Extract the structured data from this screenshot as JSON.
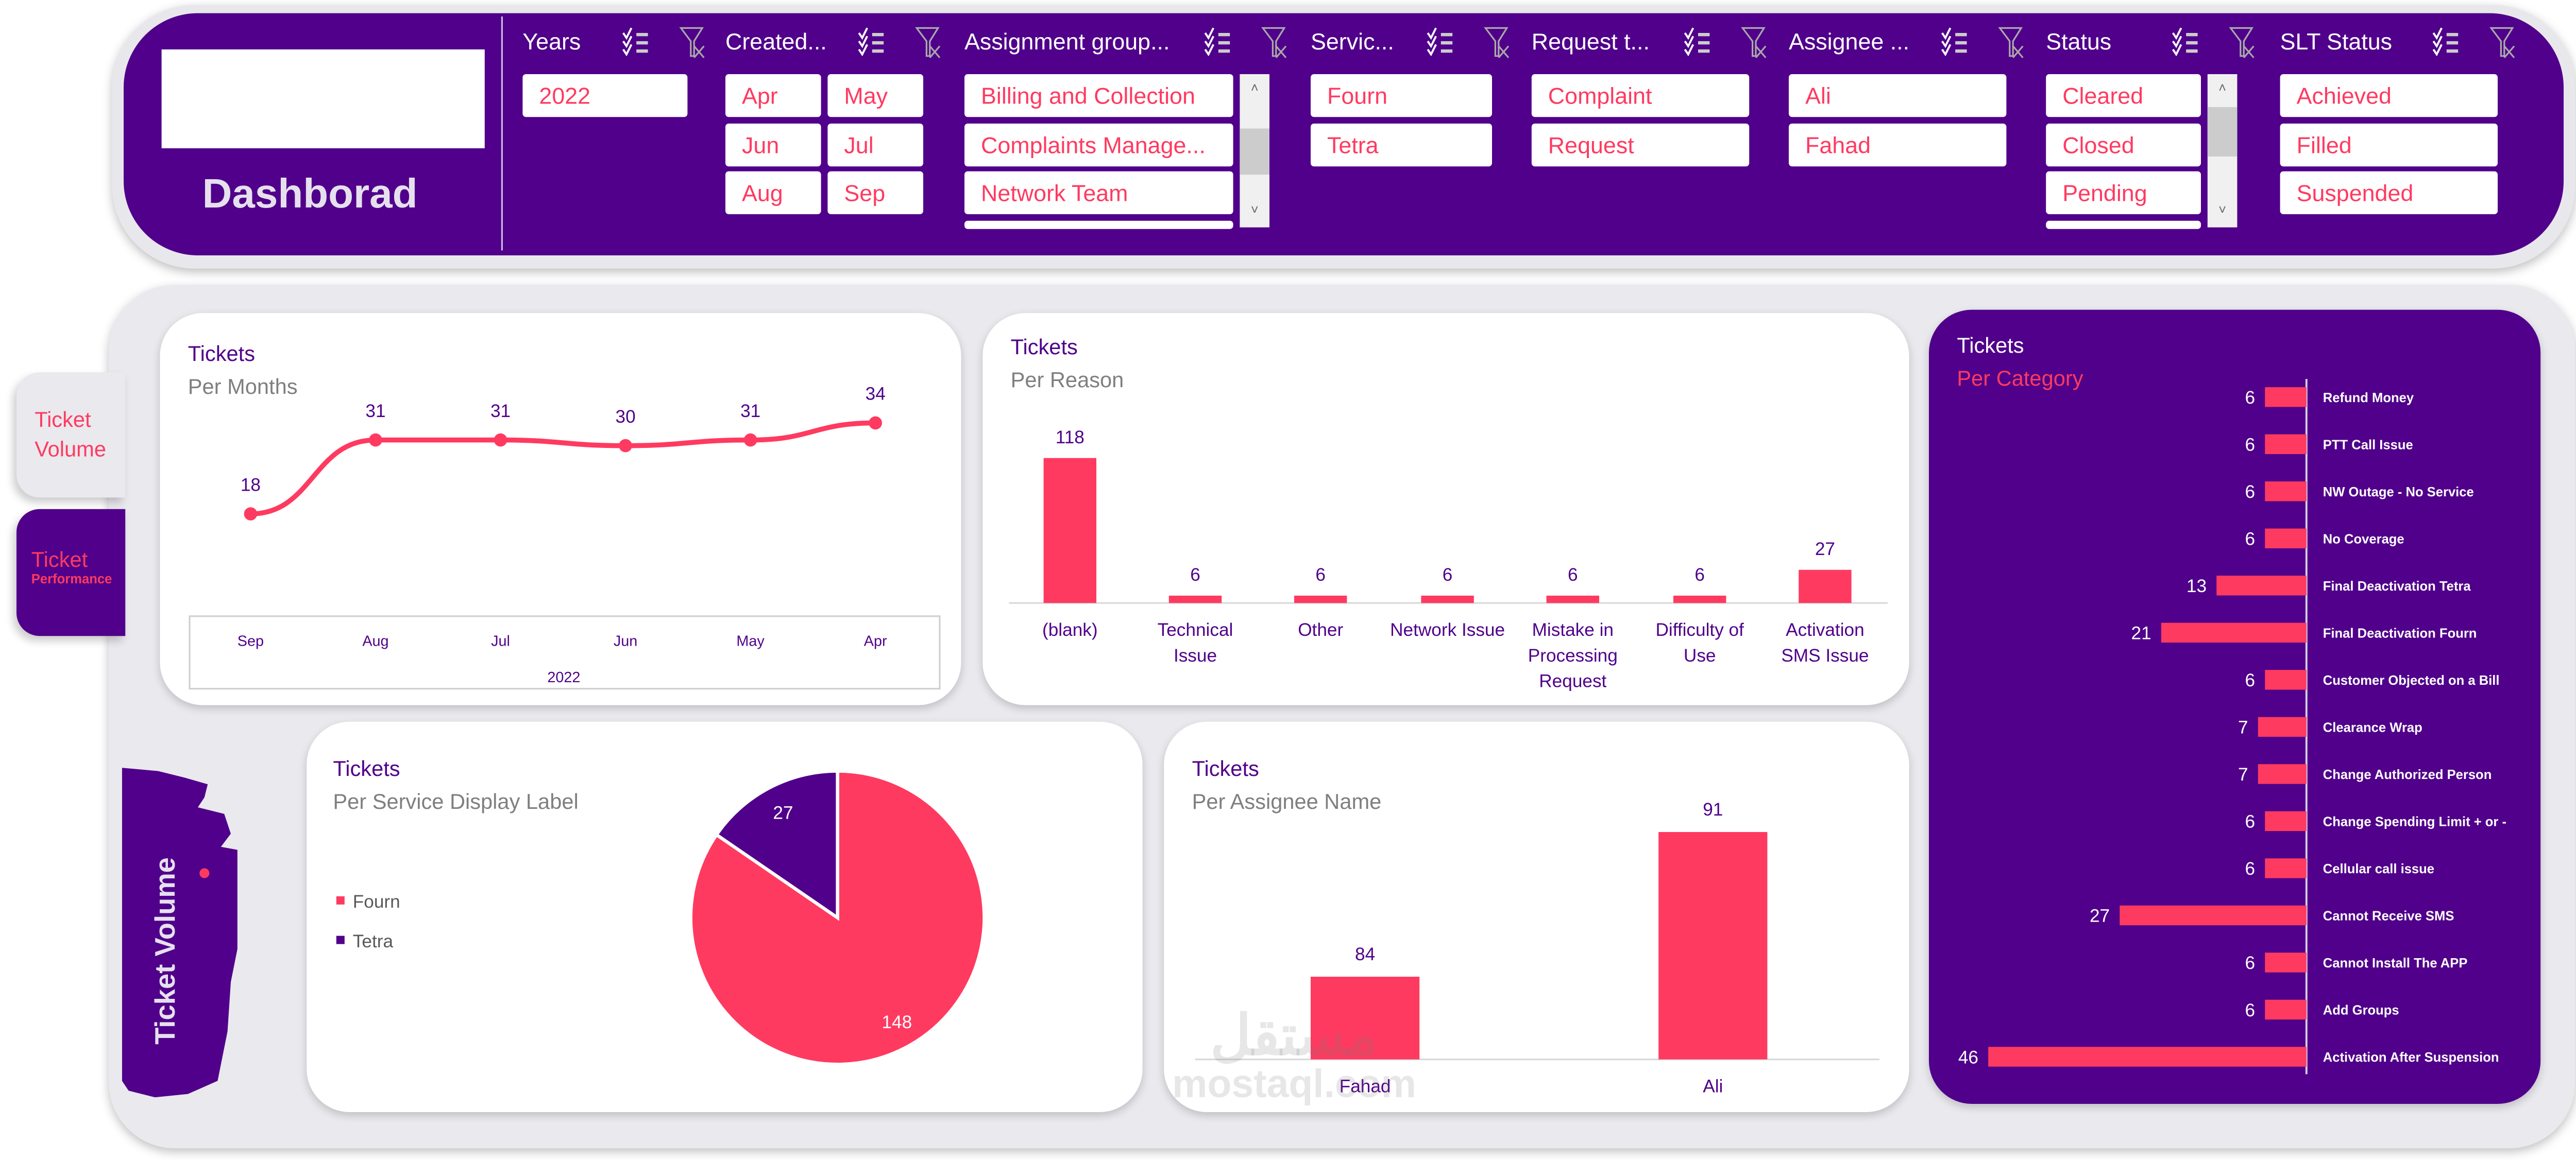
{
  "colors": {
    "purple": "#50008a",
    "accent": "#ff3a60",
    "panel": "#e9e9ee",
    "white": "#ffffff"
  },
  "header": {
    "title": "Dashborad"
  },
  "slicers": [
    {
      "title": "Years",
      "items": [
        "2022"
      ],
      "columns": 1,
      "scrollbar": false
    },
    {
      "title": "Created...",
      "items": [
        "Apr",
        "May",
        "Jun",
        "Jul",
        "Aug",
        "Sep"
      ],
      "columns": 2,
      "scrollbar": false
    },
    {
      "title": "Assignment group...",
      "items": [
        "Billing and Collection",
        "Complaints Manage...",
        "Network Team",
        ""
      ],
      "columns": 1,
      "scrollbar": true
    },
    {
      "title": "Servic...",
      "items": [
        "Fourn",
        "Tetra"
      ],
      "columns": 1,
      "scrollbar": false
    },
    {
      "title": "Request t...",
      "items": [
        "Complaint",
        "Request"
      ],
      "columns": 1,
      "scrollbar": false
    },
    {
      "title": "Assignee ...",
      "items": [
        "Ali",
        "Fahad"
      ],
      "columns": 1,
      "scrollbar": false
    },
    {
      "title": "Status",
      "items": [
        "Cleared",
        "Closed",
        "Pending",
        ""
      ],
      "columns": 1,
      "scrollbar": true
    },
    {
      "title": "SLT Status",
      "items": [
        "Achieved",
        "Filled",
        "Suspended"
      ],
      "columns": 1,
      "scrollbar": false
    }
  ],
  "slicer_icons": {
    "multi_select": "multi-select-checklist-icon",
    "clear_filter": "clear-filter-icon"
  },
  "tabs": [
    {
      "line1": "Ticket",
      "line2": "Volume",
      "active": false
    },
    {
      "line1": "Ticket",
      "line2": "Performance",
      "active": true
    }
  ],
  "section_label": "Ticket Volume",
  "watermark": {
    "arabic": "مستقل",
    "latin": "mostaql.com"
  },
  "chart_data": [
    {
      "type": "line",
      "title": "Tickets",
      "subtitle": "Per Months",
      "categories": [
        "Sep",
        "Aug",
        "Jul",
        "Jun",
        "May",
        "Apr"
      ],
      "group_label": "2022",
      "values": [
        18,
        31,
        31,
        30,
        31,
        34
      ],
      "ylim": [
        0,
        40
      ],
      "grid": false,
      "legend": "none"
    },
    {
      "type": "bar",
      "title": "Tickets",
      "subtitle": "Per Reason",
      "categories": [
        "(blank)",
        "Technical Issue",
        "Other",
        "Network Issue",
        "Mistake in Processing Request",
        "Difficulty of Use",
        "Activation SMS Issue"
      ],
      "values": [
        118,
        6,
        6,
        6,
        6,
        6,
        27
      ],
      "ylim": [
        0,
        118
      ],
      "grid": false,
      "legend": "none"
    },
    {
      "type": "bar",
      "orientation": "horizontal",
      "title": "Tickets",
      "subtitle": "Per Category",
      "categories": [
        "Refund Money",
        "PTT Call Issue",
        "NW Outage - No Service",
        "No Coverage",
        "Final Deactivation Tetra",
        "Final Deactivation Fourn",
        "Customer Objected on a Bill",
        "Clearance Wrap",
        "Change Authorized Person",
        "Change  Spending Limit + or -",
        "Cellular call issue",
        "Cannot Receive SMS",
        "Cannot Install The APP",
        "Add Groups",
        "Activation After Suspension"
      ],
      "values": [
        6,
        6,
        6,
        6,
        13,
        21,
        6,
        7,
        7,
        6,
        6,
        27,
        6,
        6,
        46
      ],
      "xlim": [
        0,
        46
      ],
      "grid": false,
      "legend": "none"
    },
    {
      "type": "pie",
      "title": "Tickets",
      "subtitle": "Per Service Display Label",
      "categories": [
        "Fourn",
        "Tetra"
      ],
      "values": [
        148,
        27
      ],
      "colors": [
        "#ff3a60",
        "#50008a"
      ],
      "legend": "left"
    },
    {
      "type": "bar",
      "title": "Tickets",
      "subtitle": "Per Assignee Name",
      "categories": [
        "Fahad",
        "Ali"
      ],
      "values": [
        84,
        91
      ],
      "ylim": [
        80,
        91
      ],
      "grid": false,
      "legend": "none"
    }
  ]
}
